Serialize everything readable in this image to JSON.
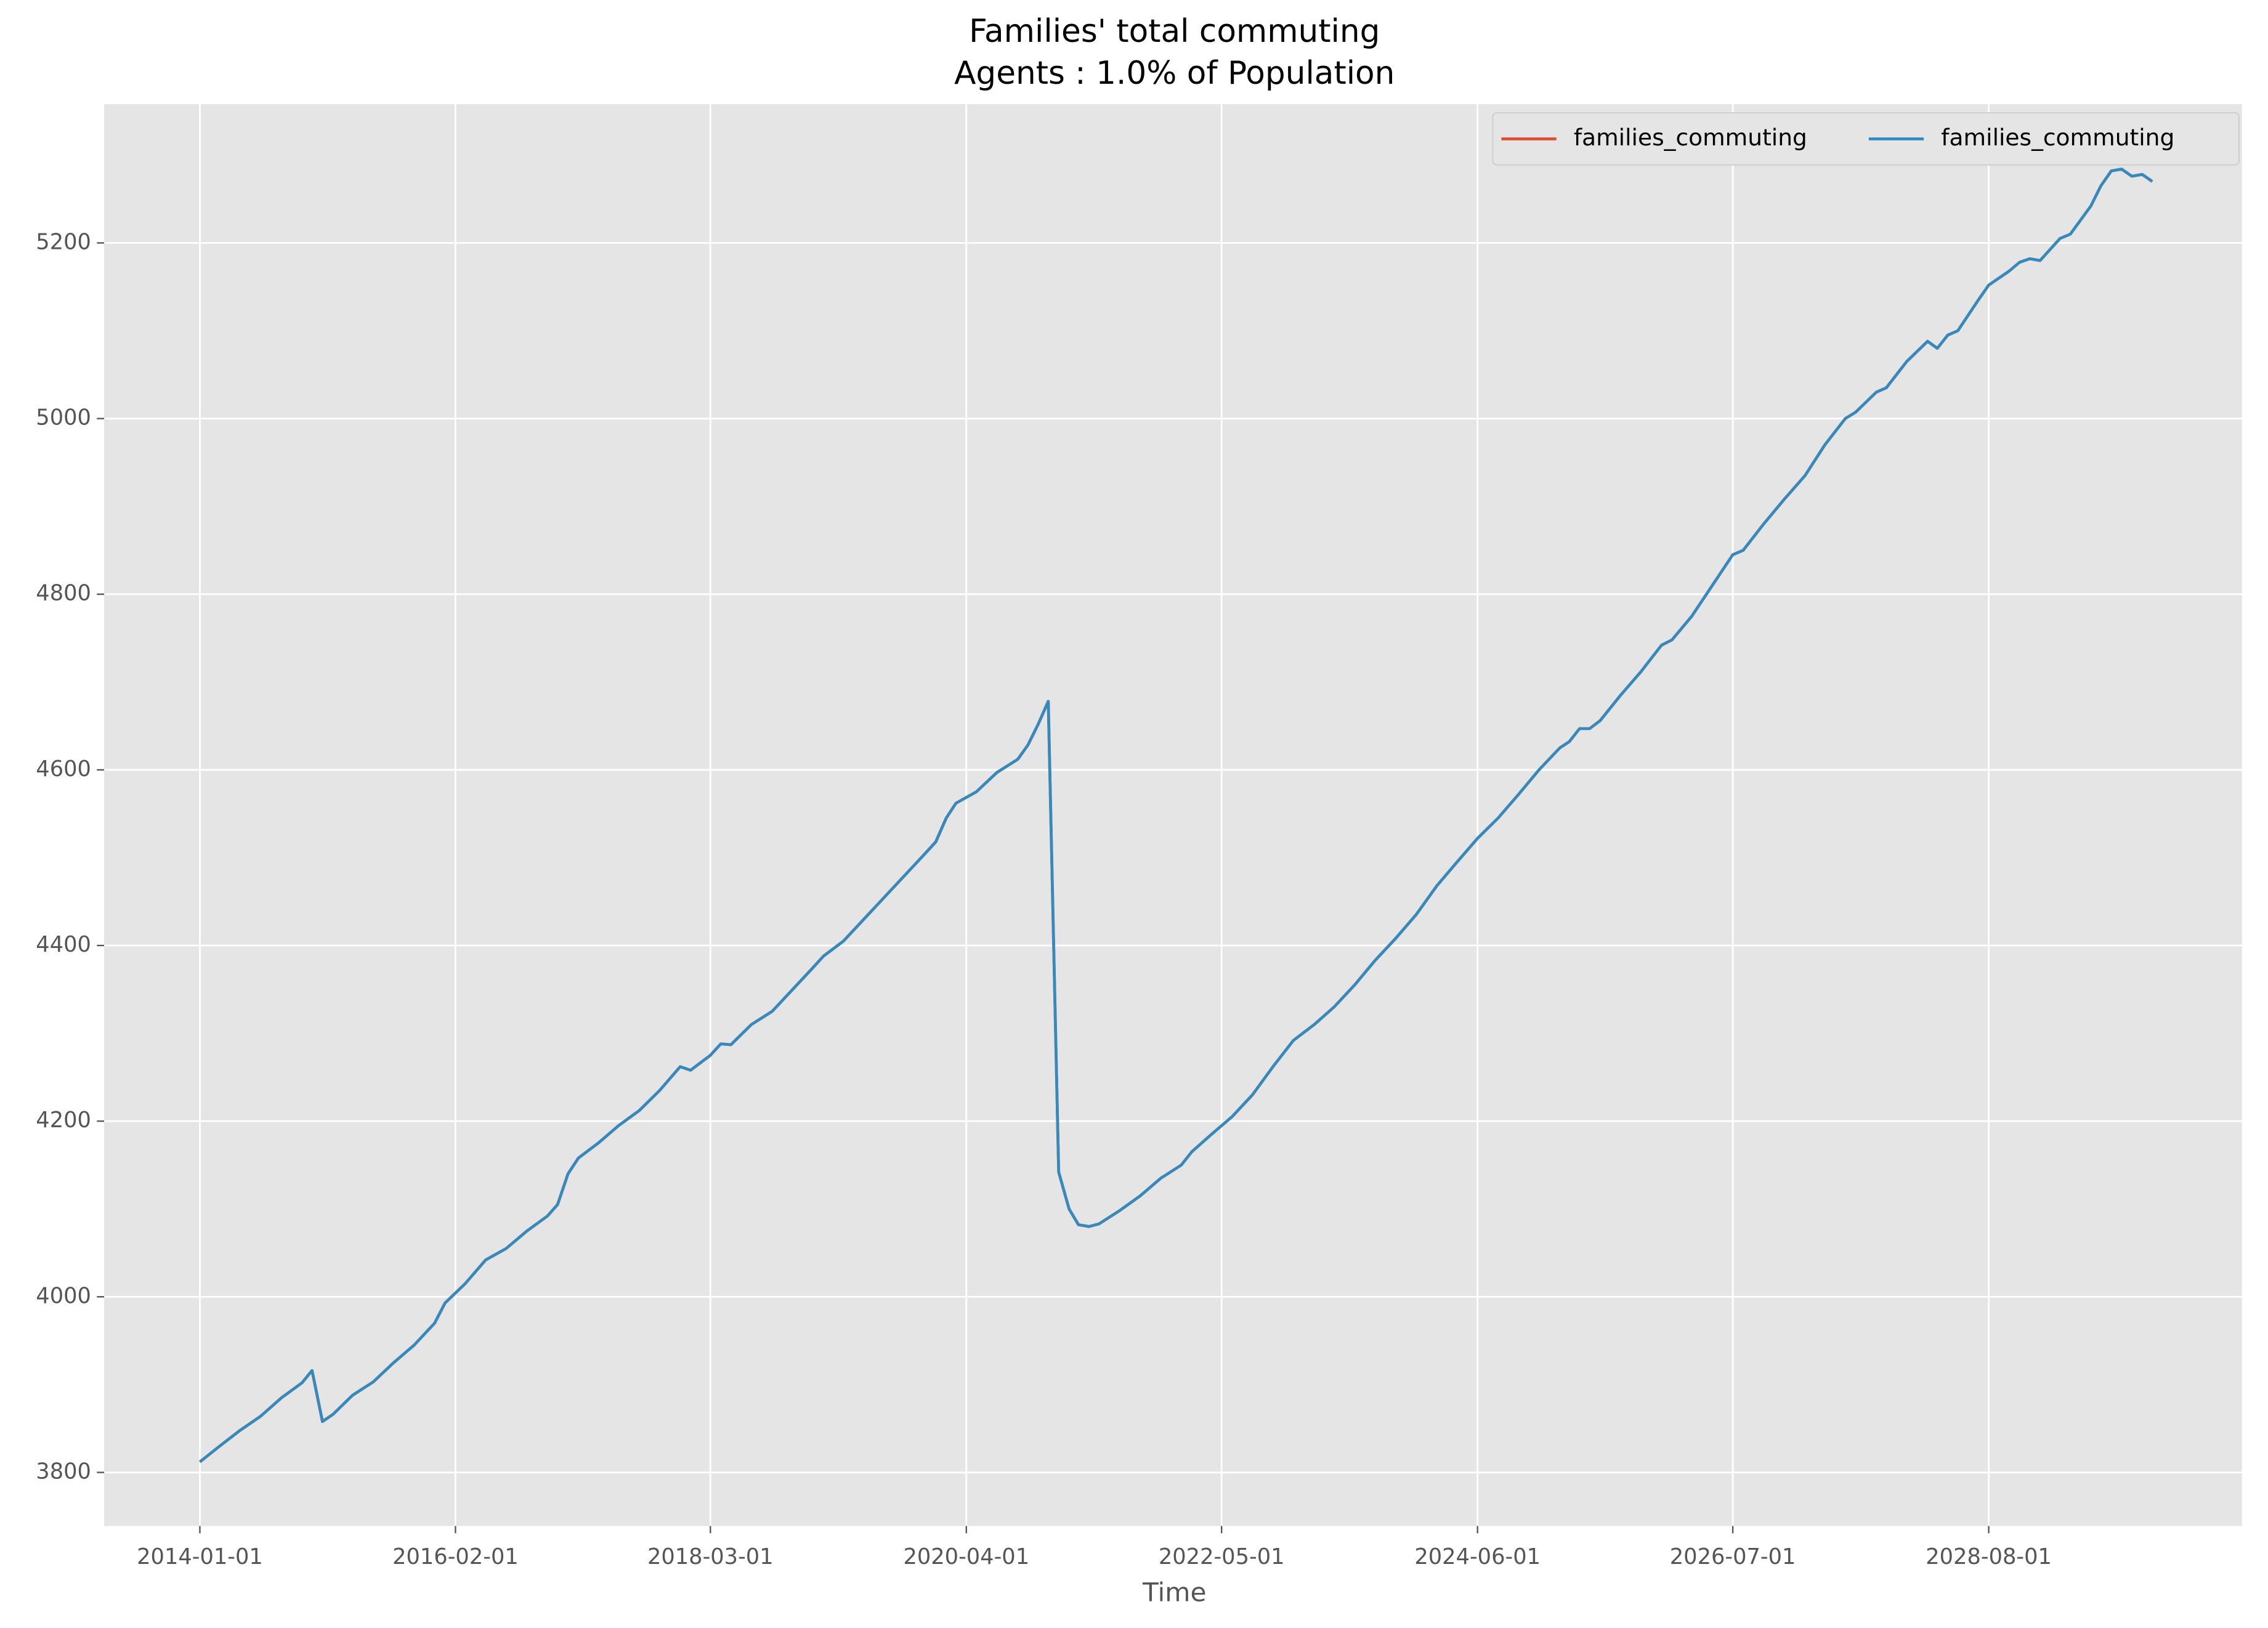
{
  "chart_data": {
    "type": "line",
    "title": "Families' total commuting",
    "subtitle": "Agents : 1.0% of Population",
    "x_label": "Time",
    "x": [
      "2014-01-01",
      "2014-03-01",
      "2014-05-01",
      "2014-07-01",
      "2014-09-01",
      "2014-11-01",
      "2014-12-01",
      "2015-01-01",
      "2015-02-01",
      "2015-04-01",
      "2015-06-01",
      "2015-08-01",
      "2015-10-01",
      "2015-12-01",
      "2016-01-01",
      "2016-03-01",
      "2016-05-01",
      "2016-07-01",
      "2016-09-01",
      "2016-11-01",
      "2016-12-01",
      "2017-01-01",
      "2017-02-01",
      "2017-04-01",
      "2017-06-01",
      "2017-08-01",
      "2017-10-01",
      "2017-12-01",
      "2018-01-01",
      "2018-03-01",
      "2018-04-01",
      "2018-05-01",
      "2018-07-01",
      "2018-09-01",
      "2018-11-01",
      "2019-01-01",
      "2019-02-01",
      "2019-04-01",
      "2019-06-01",
      "2019-08-01",
      "2019-10-01",
      "2019-12-01",
      "2020-01-01",
      "2020-02-01",
      "2020-03-01",
      "2020-05-01",
      "2020-07-01",
      "2020-09-01",
      "2020-10-01",
      "2020-11-01",
      "2020-12-01",
      "2021-01-01",
      "2021-02-01",
      "2021-03-01",
      "2021-04-01",
      "2021-05-01",
      "2021-07-01",
      "2021-09-01",
      "2021-11-01",
      "2022-01-01",
      "2022-02-01",
      "2022-04-01",
      "2022-06-01",
      "2022-08-01",
      "2022-10-01",
      "2022-12-01",
      "2023-02-01",
      "2023-04-01",
      "2023-06-01",
      "2023-08-01",
      "2023-10-01",
      "2023-12-01",
      "2024-02-01",
      "2024-04-01",
      "2024-06-01",
      "2024-08-01",
      "2024-10-01",
      "2024-12-01",
      "2025-02-01",
      "2025-03-01",
      "2025-04-01",
      "2025-05-01",
      "2025-06-01",
      "2025-08-01",
      "2025-10-01",
      "2025-12-01",
      "2026-01-01",
      "2026-03-01",
      "2026-05-01",
      "2026-07-01",
      "2026-08-01",
      "2026-10-01",
      "2026-12-01",
      "2027-02-01",
      "2027-04-01",
      "2027-06-01",
      "2027-07-01",
      "2027-09-01",
      "2027-10-01",
      "2027-12-01",
      "2028-02-01",
      "2028-03-01",
      "2028-04-01",
      "2028-05-01",
      "2028-07-01",
      "2028-08-01",
      "2028-10-01",
      "2028-11-01",
      "2028-12-01",
      "2029-01-01",
      "2029-03-01",
      "2029-04-01",
      "2029-06-01",
      "2029-07-01",
      "2029-08-01",
      "2029-09-01",
      "2029-10-01",
      "2029-11-01",
      "2029-12-01"
    ],
    "series": [
      {
        "name": "families_commuting",
        "color": "#e24a33",
        "values": [
          3812,
          3830,
          3848,
          3864,
          3885,
          3902,
          3916,
          3858,
          3866,
          3888,
          3903,
          3925,
          3945,
          3970,
          3993,
          4015,
          4042,
          4055,
          4075,
          4092,
          4105,
          4140,
          4158,
          4175,
          4195,
          4212,
          4235,
          4262,
          4258,
          4275,
          4288,
          4287,
          4310,
          4325,
          4350,
          4375,
          4388,
          4405,
          4430,
          4455,
          4480,
          4505,
          4518,
          4545,
          4562,
          4575,
          4597,
          4612,
          4628,
          4652,
          4678,
          4142,
          4100,
          4082,
          4080,
          4083,
          4098,
          4115,
          4135,
          4150,
          4165,
          4185,
          4205,
          4230,
          4262,
          4292,
          4310,
          4330,
          4355,
          4383,
          4408,
          4435,
          4468,
          4495,
          4522,
          4545,
          4572,
          4600,
          4625,
          4632,
          4647,
          4647,
          4656,
          4685,
          4712,
          4742,
          4748,
          4775,
          4810,
          4845,
          4850,
          4880,
          4908,
          4935,
          4970,
          5000,
          5007,
          5030,
          5035,
          5065,
          5088,
          5080,
          5095,
          5100,
          5135,
          5152,
          5168,
          5178,
          5182,
          5180,
          5205,
          5210,
          5242,
          5265,
          5282,
          5284,
          5276,
          5278,
          5270
        ]
      },
      {
        "name": "families_commuting",
        "color": "#348abd",
        "values": [
          3812,
          3830,
          3848,
          3864,
          3885,
          3902,
          3916,
          3858,
          3866,
          3888,
          3903,
          3925,
          3945,
          3970,
          3993,
          4015,
          4042,
          4055,
          4075,
          4092,
          4105,
          4140,
          4158,
          4175,
          4195,
          4212,
          4235,
          4262,
          4258,
          4275,
          4288,
          4287,
          4310,
          4325,
          4350,
          4375,
          4388,
          4405,
          4430,
          4455,
          4480,
          4505,
          4518,
          4545,
          4562,
          4575,
          4597,
          4612,
          4628,
          4652,
          4678,
          4142,
          4100,
          4082,
          4080,
          4083,
          4098,
          4115,
          4135,
          4150,
          4165,
          4185,
          4205,
          4230,
          4262,
          4292,
          4310,
          4330,
          4355,
          4383,
          4408,
          4435,
          4468,
          4495,
          4522,
          4545,
          4572,
          4600,
          4625,
          4632,
          4647,
          4647,
          4656,
          4685,
          4712,
          4742,
          4748,
          4775,
          4810,
          4845,
          4850,
          4880,
          4908,
          4935,
          4970,
          5000,
          5007,
          5030,
          5035,
          5065,
          5088,
          5080,
          5095,
          5100,
          5135,
          5152,
          5168,
          5178,
          5182,
          5180,
          5205,
          5210,
          5242,
          5265,
          5282,
          5284,
          5276,
          5278,
          5270
        ]
      }
    ],
    "xlim": [
      "2013-03-22",
      "2030-08-25"
    ],
    "xticks": [
      "2014-01-01",
      "2016-02-01",
      "2018-03-01",
      "2020-04-01",
      "2022-05-01",
      "2024-06-01",
      "2026-07-01",
      "2028-08-01"
    ],
    "ylim": [
      3739,
      5358
    ],
    "yticks": [
      3800,
      4000,
      4200,
      4400,
      4600,
      4800,
      5000,
      5200
    ],
    "grid": true,
    "legend": "upper right"
  }
}
